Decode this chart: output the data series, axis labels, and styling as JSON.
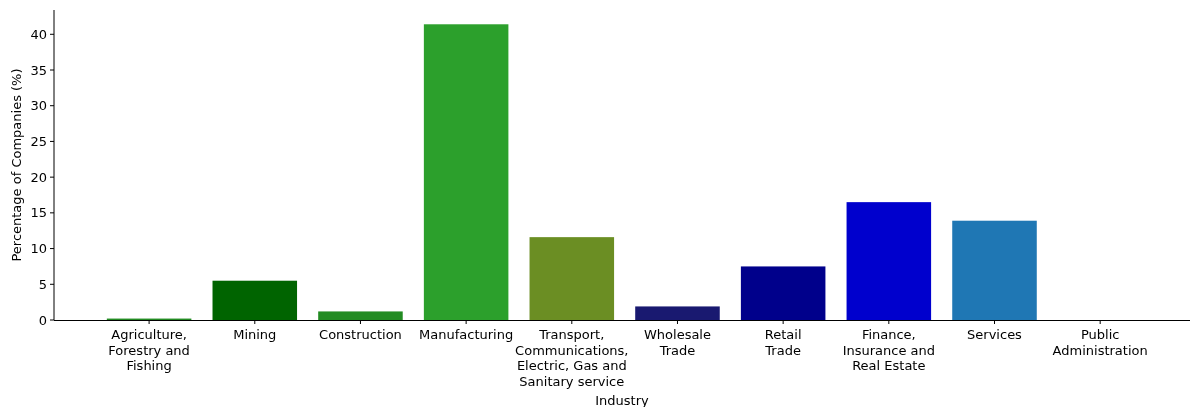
{
  "chart_data": {
    "type": "bar",
    "xlabel": "Industry",
    "ylabel": "Percentage of Companies (%)",
    "categories": [
      "Agriculture,\nForestry and\nFishing",
      "Mining",
      "Construction",
      "Manufacturing",
      "Transport,\nCommunications,\nElectric, Gas and\nSanitary service",
      "Wholesale\nTrade",
      "Retail\nTrade",
      "Finance,\nInsurance and\nReal Estate",
      "Services",
      "Public\nAdministration"
    ],
    "values": [
      0.2,
      5.5,
      1.2,
      41.4,
      11.6,
      1.9,
      7.5,
      16.5,
      13.9,
      0
    ],
    "colors": [
      "#228b22",
      "#006400",
      "#228b22",
      "#2ca02c",
      "#6b8e23",
      "#191970",
      "#00008b",
      "#0000cd",
      "#1f77b4",
      "#1f77b4"
    ],
    "ylim": [
      0,
      43.4
    ],
    "yticks": [
      0,
      5,
      10,
      15,
      20,
      25,
      30,
      35,
      40
    ],
    "grid": false
  }
}
